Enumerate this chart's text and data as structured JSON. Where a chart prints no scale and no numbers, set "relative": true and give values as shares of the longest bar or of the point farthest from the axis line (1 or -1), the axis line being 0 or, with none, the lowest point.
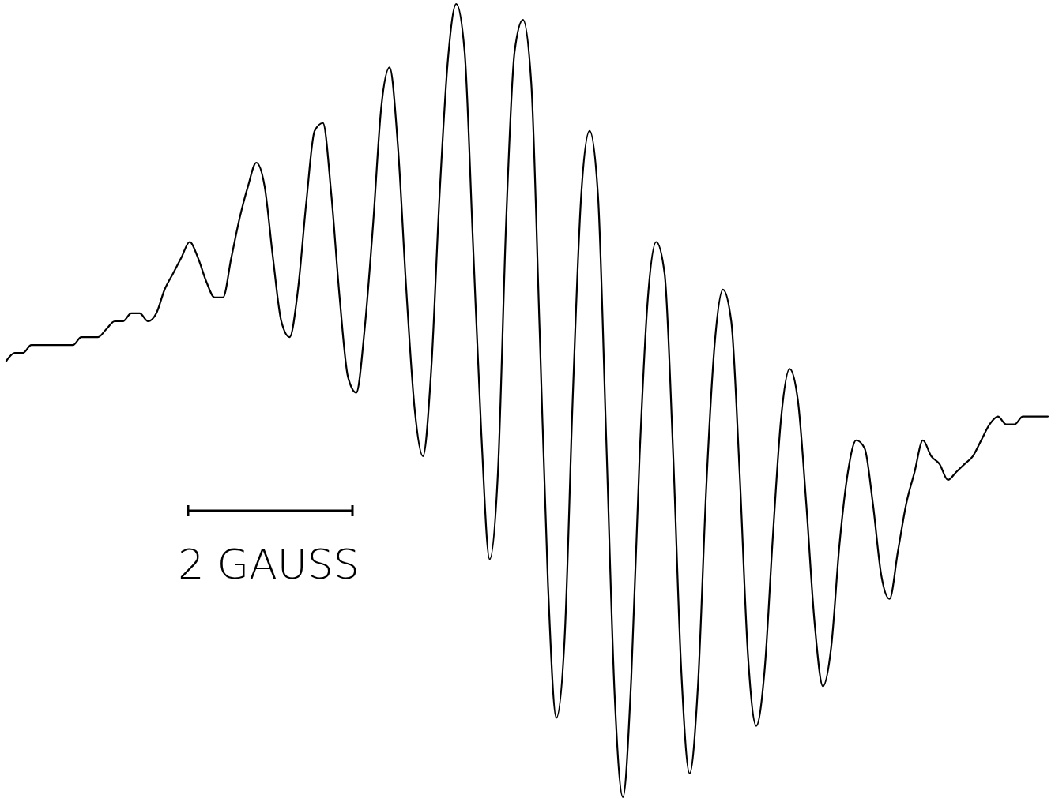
{
  "chart_data": {
    "type": "line",
    "relative": true,
    "color": "#000000",
    "annotations": [
      "2 GAUSS"
    ],
    "categories": [
      null,
      null,
      null,
      null,
      null,
      null,
      null,
      null,
      null,
      null,
      null,
      null,
      null,
      null,
      null,
      null,
      null,
      null,
      null,
      null,
      null,
      null,
      null,
      null,
      null,
      null,
      null,
      null,
      null,
      null,
      null,
      null,
      null,
      null,
      null,
      null,
      null,
      null,
      null,
      null,
      null,
      null,
      null,
      null,
      null,
      null,
      null,
      null,
      null,
      null,
      null,
      null,
      null,
      null,
      null,
      null,
      null,
      null,
      null,
      null,
      null,
      null,
      null,
      null,
      null,
      null,
      null,
      null,
      null,
      null,
      null,
      null,
      null,
      null,
      null,
      null,
      null,
      null,
      null,
      null,
      null,
      null,
      null,
      null,
      null,
      null,
      null,
      null,
      null,
      null,
      null,
      null,
      null,
      null,
      null,
      null,
      null,
      null,
      null,
      null,
      null,
      null,
      null,
      null,
      null,
      null,
      null,
      null,
      null,
      null,
      null,
      null,
      null,
      null,
      null,
      null,
      null,
      null,
      null,
      null,
      null,
      null,
      null,
      null,
      null,
      null
    ],
    "values": [
      0.55,
      0.56,
      0.56,
      0.57,
      0.57,
      0.57,
      0.57,
      0.57,
      0.57,
      0.58,
      0.58,
      0.58,
      0.59,
      0.6,
      0.6,
      0.61,
      0.61,
      0.6,
      0.61,
      0.64,
      0.66,
      0.68,
      0.7,
      0.68,
      0.65,
      0.63,
      0.63,
      0.68,
      0.73,
      0.77,
      0.8,
      0.77,
      0.68,
      0.6,
      0.58,
      0.64,
      0.75,
      0.84,
      0.85,
      0.76,
      0.63,
      0.53,
      0.51,
      0.59,
      0.72,
      0.87,
      0.92,
      0.82,
      0.64,
      0.49,
      0.43,
      0.54,
      0.76,
      0.93,
      1.0,
      0.94,
      0.7,
      0.46,
      0.3,
      0.41,
      0.73,
      0.94,
      0.98,
      0.9,
      0.59,
      0.27,
      0.1,
      0.2,
      0.51,
      0.76,
      0.84,
      0.76,
      0.45,
      0.13,
      0,
      0.15,
      0.43,
      0.63,
      0.7,
      0.66,
      0.44,
      0.16,
      0.03,
      0.14,
      0.39,
      0.57,
      0.64,
      0.6,
      0.41,
      0.18,
      0.09,
      0.16,
      0.33,
      0.48,
      0.54,
      0.5,
      0.37,
      0.22,
      0.14,
      0.19,
      0.32,
      0.41,
      0.45,
      0.44,
      0.37,
      0.28,
      0.25,
      0.31,
      0.37,
      0.41,
      0.45,
      0.43,
      0.42,
      0.4,
      0.41,
      0.42,
      0.43,
      0.45,
      0.47,
      0.48,
      0.47,
      0.47,
      0.48,
      0.48,
      0.48,
      0.48
    ]
  }
}
